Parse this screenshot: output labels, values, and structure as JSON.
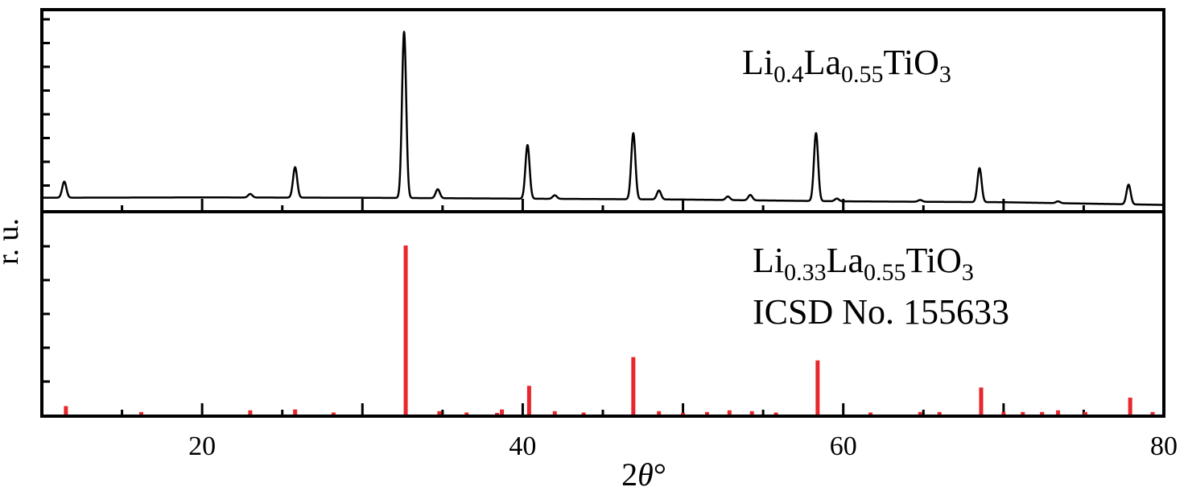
{
  "chart_data": {
    "type": "line",
    "ylabel": "r. u.",
    "xlabel_parts": [
      "2",
      "θ",
      "°"
    ],
    "xlim": [
      10,
      80
    ],
    "ticks": [
      20,
      40,
      60,
      80
    ],
    "tick_labels": [
      "20",
      "40",
      "60",
      "80"
    ],
    "grid": false,
    "series": [
      {
        "label_parts": {
          "a": "Li",
          "a_sub": "0.4",
          "b": "La",
          "b_sub": "0.55",
          "c": "TiO",
          "c_sub": "3"
        },
        "style": "line",
        "color": "#000000",
        "baseline": 0.06,
        "background": [
          [
            10,
            0.06
          ],
          [
            20,
            0.062
          ],
          [
            30,
            0.06
          ],
          [
            40,
            0.055
          ],
          [
            50,
            0.05
          ],
          [
            60,
            0.04
          ],
          [
            70,
            0.035
          ],
          [
            80,
            0.02
          ]
        ],
        "peaks": [
          [
            11.4,
            0.09
          ],
          [
            23.0,
            0.02
          ],
          [
            25.8,
            0.17
          ],
          [
            32.6,
            0.93
          ],
          [
            34.7,
            0.05
          ],
          [
            40.3,
            0.3
          ],
          [
            42.0,
            0.02
          ],
          [
            46.9,
            0.37
          ],
          [
            48.5,
            0.05
          ],
          [
            52.8,
            0.02
          ],
          [
            54.2,
            0.03
          ],
          [
            58.3,
            0.38
          ],
          [
            59.6,
            0.015
          ],
          [
            64.8,
            0.01
          ],
          [
            68.5,
            0.19
          ],
          [
            73.4,
            0.01
          ],
          [
            77.8,
            0.11
          ]
        ]
      },
      {
        "label_parts": {
          "a": "Li",
          "a_sub": "0.33",
          "b": "La",
          "b_sub": "0.55",
          "c": "TiO",
          "c_sub": "3"
        },
        "label_line2": "ICSD No. 155633",
        "style": "stick",
        "color": "#e8262b",
        "sticks": [
          [
            11.5,
            0.05
          ],
          [
            16.2,
            0.015
          ],
          [
            23.0,
            0.025
          ],
          [
            25.8,
            0.03
          ],
          [
            28.2,
            0.012
          ],
          [
            32.7,
            1.0
          ],
          [
            34.8,
            0.02
          ],
          [
            36.5,
            0.012
          ],
          [
            38.4,
            0.01
          ],
          [
            38.7,
            0.03
          ],
          [
            40.4,
            0.17
          ],
          [
            42.0,
            0.02
          ],
          [
            43.8,
            0.012
          ],
          [
            46.9,
            0.34
          ],
          [
            48.5,
            0.02
          ],
          [
            50.0,
            0.01
          ],
          [
            51.5,
            0.015
          ],
          [
            52.9,
            0.025
          ],
          [
            54.3,
            0.02
          ],
          [
            55.8,
            0.012
          ],
          [
            58.4,
            0.32
          ],
          [
            61.7,
            0.012
          ],
          [
            64.8,
            0.015
          ],
          [
            66.0,
            0.015
          ],
          [
            68.6,
            0.16
          ],
          [
            70.0,
            0.015
          ],
          [
            71.2,
            0.015
          ],
          [
            72.4,
            0.015
          ],
          [
            73.4,
            0.025
          ],
          [
            75.1,
            0.015
          ],
          [
            77.9,
            0.1
          ],
          [
            79.3,
            0.015
          ]
        ]
      }
    ]
  }
}
